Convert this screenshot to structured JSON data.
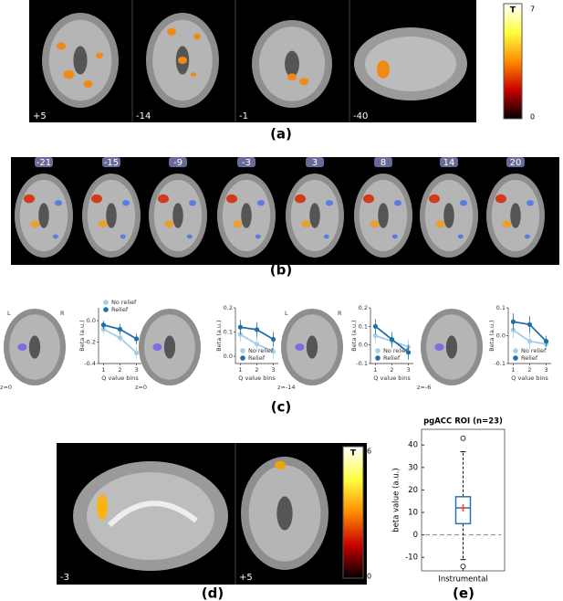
{
  "figure": {
    "panel_a": {
      "label": "(a)",
      "slices": [
        "+5",
        "-14",
        "-1",
        "-40"
      ],
      "colorbar": {
        "title": "T",
        "max": 7,
        "min": 0
      }
    },
    "panel_b": {
      "label": "(b)",
      "slices": [
        "-21",
        "-15",
        "-9",
        "-3",
        "3",
        "8",
        "14",
        "20"
      ]
    },
    "panel_c": {
      "label": "(c)",
      "slices": [
        {
          "left": "L",
          "right": "R",
          "z": "z=0"
        },
        {
          "z": "z=0"
        },
        {
          "left": "L",
          "right": "R",
          "z": "z=-14"
        },
        {
          "z": "z=-6"
        }
      ]
    },
    "panel_d": {
      "label": "(d)",
      "slices": [
        "-3",
        "+5"
      ],
      "colorbar": {
        "title": "T",
        "max": 6,
        "min": 0
      }
    },
    "panel_e": {
      "label": "(e)"
    }
  },
  "chart_data": [
    {
      "type": "line",
      "xlabel": "Q value bins",
      "ylabel": "Beta (a.u.)",
      "x": [
        1,
        2,
        3
      ],
      "xlim": [
        0.7,
        3.3
      ],
      "xticks": [
        1,
        2,
        3
      ],
      "ylim": [
        -0.4,
        0.12
      ],
      "yticks": [
        {
          "value": 0,
          "label": "0.0"
        },
        -0.2,
        -0.4
      ],
      "legend": "upper left",
      "series": [
        {
          "name": "No relief",
          "color": "#a6cde3",
          "values": [
            -0.08,
            -0.16,
            -0.3
          ],
          "errors": [
            0.04,
            0.04,
            0.05
          ]
        },
        {
          "name": "Relief",
          "color": "#1f6fa8",
          "values": [
            -0.04,
            -0.08,
            -0.17
          ],
          "errors": [
            0.04,
            0.05,
            0.05
          ]
        }
      ]
    },
    {
      "type": "line",
      "xlabel": "Q value bins",
      "ylabel": "Beta (a.u.)",
      "x": [
        1,
        2,
        3
      ],
      "xlim": [
        0.7,
        3.3
      ],
      "xticks": [
        1,
        2,
        3
      ],
      "ylim": [
        -0.03,
        0.2
      ],
      "yticks": [
        0.2,
        0.1,
        {
          "value": 0,
          "label": "0.0"
        }
      ],
      "legend": "lower left",
      "series": [
        {
          "name": "No relief",
          "color": "#a6cde3",
          "values": [
            0.09,
            0.05,
            0.02
          ],
          "errors": [
            0.03,
            0.03,
            0.03
          ]
        },
        {
          "name": "Relief",
          "color": "#1f6fa8",
          "values": [
            0.12,
            0.11,
            0.07
          ],
          "errors": [
            0.03,
            0.03,
            0.03
          ]
        }
      ]
    },
    {
      "type": "line",
      "xlabel": "Q value bins",
      "ylabel": "Beta (a.u.)",
      "x": [
        1,
        2,
        3
      ],
      "xlim": [
        0.7,
        3.3
      ],
      "xticks": [
        1,
        2,
        3
      ],
      "ylim": [
        -0.1,
        0.2
      ],
      "yticks": [
        0.2,
        0.1,
        {
          "value": 0,
          "label": "0.0"
        },
        -0.1
      ],
      "legend": "lower left",
      "series": [
        {
          "name": "No relief",
          "color": "#a6cde3",
          "values": [
            0.05,
            0.02,
            -0.01
          ],
          "errors": [
            0.04,
            0.04,
            0.04
          ]
        },
        {
          "name": "Relief",
          "color": "#1f6fa8",
          "values": [
            0.1,
            0.03,
            -0.04
          ],
          "errors": [
            0.04,
            0.04,
            0.04
          ]
        }
      ]
    },
    {
      "type": "line",
      "xlabel": "Q value bins",
      "ylabel": "Beta (a.u.)",
      "x": [
        1,
        2,
        3
      ],
      "xlim": [
        0.7,
        3.3
      ],
      "xticks": [
        1,
        2,
        3
      ],
      "ylim": [
        -0.1,
        0.1
      ],
      "yticks": [
        0.1,
        {
          "value": 0,
          "label": "0.0"
        },
        -0.1
      ],
      "legend": "lower left",
      "series": [
        {
          "name": "No relief",
          "color": "#a6cde3",
          "values": [
            0.02,
            -0.02,
            -0.03
          ],
          "errors": [
            0.03,
            0.03,
            0.02
          ]
        },
        {
          "name": "Relief",
          "color": "#1f6fa8",
          "values": [
            0.05,
            0.04,
            -0.02
          ],
          "errors": [
            0.03,
            0.03,
            0.02
          ]
        }
      ]
    },
    {
      "type": "box",
      "title": "pgACC ROI (n=23)",
      "ylabel": "beta value (a.u.)",
      "categories": [
        "Instrumental"
      ],
      "ylim": [
        -16,
        47
      ],
      "yticks": [
        -10,
        0,
        10,
        20,
        30,
        40
      ],
      "reference_line": 0,
      "box": {
        "q1": 5,
        "median": 12,
        "q3": 17,
        "whisker_low": -11,
        "whisker_high": 37,
        "mean": 12,
        "outliers": [
          43,
          -14
        ]
      },
      "colors": {
        "box": "#1f77b4",
        "mean": "#e8412c",
        "reference": "#888888"
      }
    }
  ]
}
